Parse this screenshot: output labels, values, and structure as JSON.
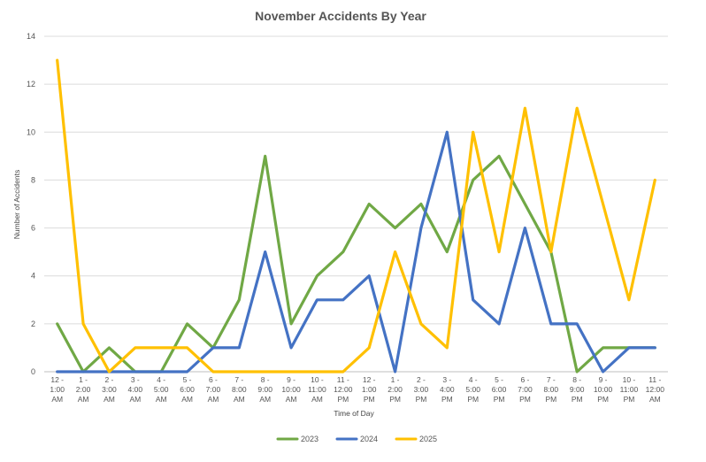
{
  "chart_data": {
    "type": "line",
    "title": "November Accidents By Year",
    "xlabel": "Time of Day",
    "ylabel": "Number of Accidents",
    "ylim": [
      0,
      14
    ],
    "yticks": [
      "0",
      "2",
      "4",
      "6",
      "8",
      "10",
      "12",
      "14"
    ],
    "grid": true,
    "legend_position": "bottom",
    "categories": [
      [
        "12 -",
        "1:00",
        "AM"
      ],
      [
        "1 -",
        "2:00",
        "AM"
      ],
      [
        "2 -",
        "3:00",
        "AM"
      ],
      [
        "3 -",
        "4:00",
        "AM"
      ],
      [
        "4 -",
        "5:00",
        "AM"
      ],
      [
        "5 -",
        "6:00",
        "AM"
      ],
      [
        "6 -",
        "7:00",
        "AM"
      ],
      [
        "7 -",
        "8:00",
        "AM"
      ],
      [
        "8 -",
        "9:00",
        "AM"
      ],
      [
        "9 -",
        "10:00",
        "AM"
      ],
      [
        "10 -",
        "11:00",
        "AM"
      ],
      [
        "11 -",
        "12:00",
        "PM"
      ],
      [
        "12 -",
        "1:00",
        "PM"
      ],
      [
        "1 -",
        "2:00",
        "PM"
      ],
      [
        "2 -",
        "3:00",
        "PM"
      ],
      [
        "3 -",
        "4:00",
        "PM"
      ],
      [
        "4 -",
        "5:00",
        "PM"
      ],
      [
        "5 -",
        "6:00",
        "PM"
      ],
      [
        "6 -",
        "7:00",
        "PM"
      ],
      [
        "7 -",
        "8:00",
        "PM"
      ],
      [
        "8 -",
        "9:00",
        "PM"
      ],
      [
        "9 -",
        "10:00",
        "PM"
      ],
      [
        "10 -",
        "11:00",
        "PM"
      ],
      [
        "11 -",
        "12:00",
        "AM"
      ]
    ],
    "series": [
      {
        "name": "2023",
        "color": "#70a845",
        "values": [
          2,
          0,
          1,
          0,
          0,
          2,
          1,
          3,
          9,
          2,
          4,
          5,
          7,
          6,
          7,
          5,
          8,
          9,
          7,
          5,
          0,
          1,
          1,
          1
        ]
      },
      {
        "name": "2024",
        "color": "#4472c4",
        "values": [
          0,
          0,
          0,
          0,
          0,
          0,
          1,
          1,
          5,
          1,
          3,
          3,
          4,
          0,
          6,
          10,
          3,
          2,
          6,
          2,
          2,
          0,
          1,
          1
        ]
      },
      {
        "name": "2025",
        "color": "#ffc000",
        "values": [
          13,
          2,
          0,
          1,
          1,
          1,
          0,
          0,
          0,
          0,
          0,
          0,
          1,
          5,
          2,
          1,
          10,
          5,
          11,
          5,
          11,
          7,
          3,
          8
        ]
      }
    ]
  }
}
